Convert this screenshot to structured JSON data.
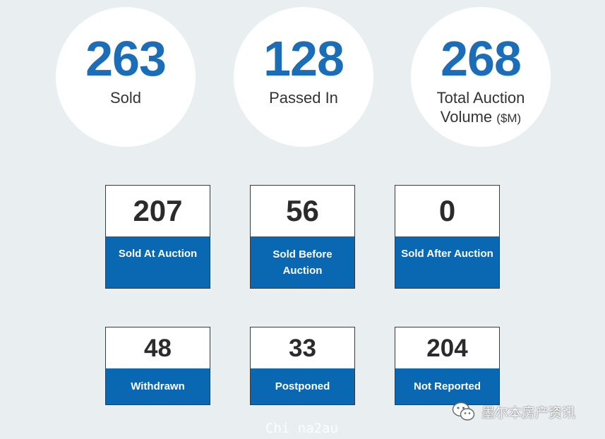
{
  "summary": [
    {
      "value": "263",
      "label": "Sold",
      "suffix": ""
    },
    {
      "value": "128",
      "label": "Passed In",
      "suffix": ""
    },
    {
      "value": "268",
      "label_line1": "Total Auction",
      "label_line2": "Volume",
      "suffix": "($M)"
    }
  ],
  "tiles_row1": [
    {
      "value": "207",
      "label": "Sold At Auction"
    },
    {
      "value": "56",
      "label": "Sold Before Auction"
    },
    {
      "value": "0",
      "label": "Sold After Auction"
    }
  ],
  "tiles_row2": [
    {
      "value": "48",
      "label": "Withdrawn"
    },
    {
      "value": "33",
      "label": "Postponed"
    },
    {
      "value": "204",
      "label": "Not Reported"
    }
  ],
  "watermark": {
    "site": "Chi na2au",
    "account": "墨尔本房产资讯",
    "icon": "wechat-icon"
  },
  "colors": {
    "accent": "#1b6db8",
    "tile_label_bg": "#0a68b2",
    "background": "#e9eef1"
  }
}
